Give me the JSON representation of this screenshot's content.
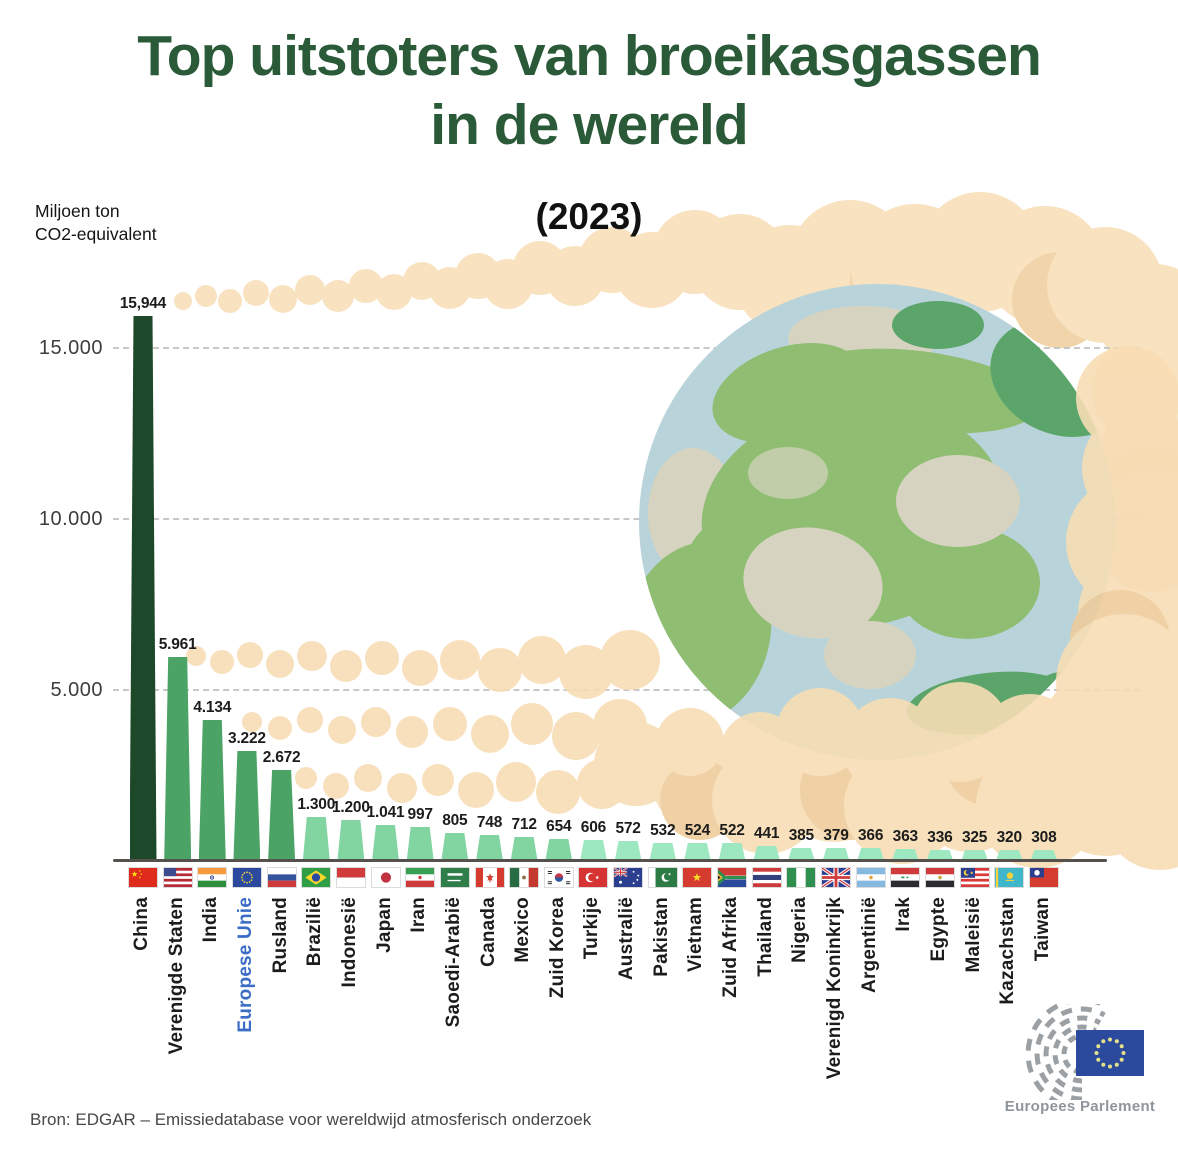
{
  "infographic": {
    "title_line1": "Top uitstoters van broeikasgassen",
    "title_line2": "in de wereld",
    "year": "(2023)",
    "unit_line1": "Miljoen ton",
    "unit_line2": "CO2-equivalent",
    "source": "Bron: EDGAR – Emissiedatabase voor wereldwijd atmosferisch onderzoek",
    "logo_caption": "Europees Parlement"
  },
  "chart_data": {
    "type": "bar",
    "title": "Top uitstoters van broeikasgassen in de wereld (2023)",
    "ylabel": "Miljoen ton CO2-equivalent",
    "ylim": [
      0,
      16500
    ],
    "grid": "horizontal-dashed",
    "legend_position": "none",
    "yticks": [
      {
        "value": 15000,
        "label": "15.000"
      },
      {
        "value": 10000,
        "label": "10.000"
      },
      {
        "value": 5000,
        "label": "5.000"
      }
    ],
    "categories": [
      "China",
      "Verenigde Staten",
      "India",
      "Europese Unie",
      "Rusland",
      "Brazilië",
      "Indonesië",
      "Japan",
      "Iran",
      "Saoedi-Arabië",
      "Canada",
      "Mexico",
      "Zuid Korea",
      "Turkije",
      "Australië",
      "Pakistan",
      "Vietnam",
      "Zuid Afrika",
      "Thailand",
      "Nigeria",
      "Verenigd Koninkrijk",
      "Argentinië",
      "Irak",
      "Egypte",
      "Maleisië",
      "Kazachstan",
      "Taiwan"
    ],
    "values": [
      15944,
      5961,
      4134,
      3222,
      2672,
      1300,
      1200,
      1041,
      997,
      805,
      748,
      712,
      654,
      606,
      572,
      532,
      524,
      522,
      441,
      385,
      379,
      366,
      363,
      336,
      325,
      320,
      308
    ],
    "value_labels": [
      "15,944",
      "5.961",
      "4.134",
      "3.222",
      "2.672",
      "1.300",
      "1.200",
      "1.041",
      "997",
      "805",
      "748",
      "712",
      "654",
      "606",
      "572",
      "532",
      "524",
      "522",
      "441",
      "385",
      "379",
      "366",
      "363",
      "336",
      "325",
      "320",
      "308"
    ],
    "flags": [
      "cn",
      "us",
      "in",
      "eu",
      "ru",
      "br",
      "id",
      "jp",
      "ir",
      "sa",
      "ca",
      "mx",
      "kr",
      "tr",
      "au",
      "pk",
      "vn",
      "za",
      "th",
      "ng",
      "gb",
      "ar",
      "iq",
      "eg",
      "my",
      "kz",
      "tw"
    ],
    "bar_colors": [
      "#1d4829",
      "#4ba365",
      "#4ba365",
      "#4ba365",
      "#4ba365",
      "#82d4a1",
      "#82d4a1",
      "#82d4a1",
      "#82d4a1",
      "#82d4a1",
      "#82d4a1",
      "#82d4a1",
      "#82d4a1",
      "#9de8c0",
      "#9de8c0",
      "#9de8c0",
      "#9de8c0",
      "#9de8c0",
      "#9de8c0",
      "#9de8c0",
      "#9de8c0",
      "#9de8c0",
      "#9de8c0",
      "#9de8c0",
      "#9de8c0",
      "#9de8c0",
      "#9de8c0"
    ],
    "highlight": {
      "category": "Europese Unie",
      "color": "#3b6cc5"
    }
  },
  "colors": {
    "title": "#2a5a38",
    "subtitle": "#111111",
    "cloud_light": "#f7ddb4",
    "cloud_dark": "#efcd9c",
    "ocean": "#b9d3da",
    "land": "#8fbd72",
    "land_dark": "#5ba56b",
    "land_pale": "#d6d4c0",
    "axis_line": "#55524e",
    "grid_line": "#c7c7c7",
    "value_text": "#1c1c1c",
    "eu_flag_blue": "#2b4a9e",
    "eu_star_yellow": "#e5e289",
    "logo_gray": "#9aa0a3"
  }
}
